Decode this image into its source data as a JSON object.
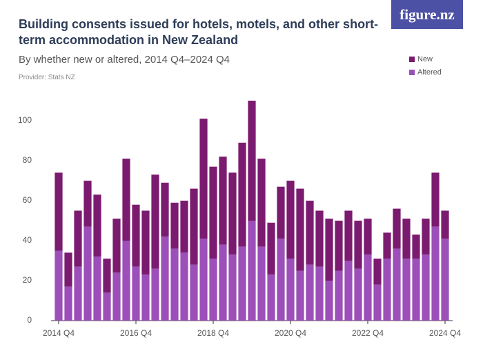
{
  "brand": "figure.nz",
  "chart_data": {
    "type": "bar",
    "stacked": true,
    "title": "Building consents issued for hotels, motels, and other short-term accommodation in New Zealand",
    "subtitle": "By whether new or altered, 2014 Q4–2024 Q4",
    "provider": "Provider: Stats NZ",
    "categories": [
      "2014 Q4",
      null,
      null,
      null,
      null,
      null,
      null,
      null,
      "2016 Q4",
      null,
      null,
      null,
      null,
      null,
      null,
      null,
      "2018 Q4",
      null,
      null,
      null,
      null,
      null,
      null,
      null,
      "2020 Q4",
      null,
      null,
      null,
      null,
      null,
      null,
      null,
      "2022 Q4",
      null,
      null,
      null,
      null,
      null,
      null,
      null,
      "2024 Q4"
    ],
    "series": [
      {
        "name": "New",
        "color": "#7b1b70",
        "values": [
          39,
          17,
          28,
          23,
          31,
          17,
          27,
          41,
          31,
          32,
          47,
          27,
          23,
          26,
          38,
          60,
          46,
          44,
          41,
          52,
          60,
          44,
          26,
          26,
          39,
          41,
          32,
          28,
          31,
          25,
          25,
          24,
          18,
          13,
          13,
          20,
          20,
          12,
          18,
          27,
          14
        ]
      },
      {
        "name": "Altered",
        "color": "#9c4fb8",
        "values": [
          35,
          17,
          27,
          47,
          32,
          14,
          24,
          40,
          27,
          23,
          26,
          42,
          36,
          34,
          28,
          41,
          31,
          38,
          33,
          37,
          50,
          37,
          23,
          41,
          31,
          25,
          28,
          27,
          20,
          25,
          30,
          26,
          33,
          18,
          31,
          36,
          31,
          31,
          33,
          47,
          41
        ]
      }
    ],
    "ylim": [
      0,
      110
    ],
    "yticks": [
      0,
      20,
      40,
      60,
      80,
      100
    ],
    "grid": false,
    "legend": "top-right"
  }
}
